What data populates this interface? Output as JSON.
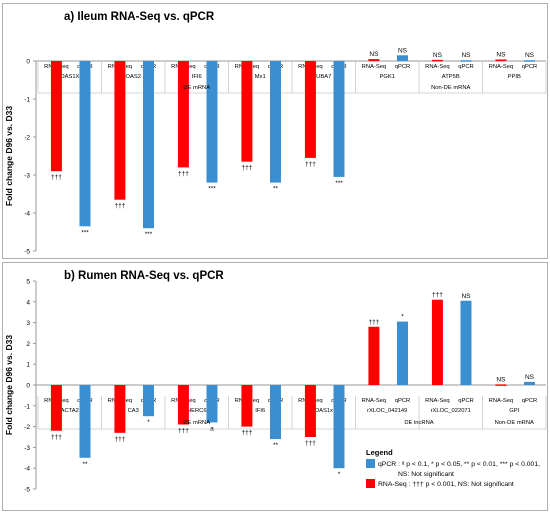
{
  "colors": {
    "rna_seq": "#ff0000",
    "qpcr": "#3b8fd0",
    "frame": "#b0b0b0",
    "axis": "#999999"
  },
  "y_axis_label": "Fold change D96 vs. D33",
  "legend": {
    "title": "Legend",
    "qpcr_text": "qPCR : ᵃ p < 0.1, * p < 0.05, ** p < 0.01, *** p < 0.001,",
    "qpcr_text_2": "NS: Not significant",
    "rnaseq_text": "RNA-Seq : ††† p < 0.001, NS: Not significant"
  },
  "chart_data": [
    {
      "type": "bar",
      "title": "a) Ileum RNA-Seq vs. qPCR",
      "ylabel": "Fold change D96 vs. D33",
      "ylim": [
        -5,
        0
      ],
      "yticks": [
        "0",
        "-1",
        "-2",
        "-3",
        "-4",
        "-5"
      ],
      "series_names": [
        "RNA-Seq",
        "qPCR"
      ],
      "genes": [
        "OAS1X",
        "OAS2",
        "IFI6",
        "Mx1",
        "UBA7",
        "PGK1",
        "ATP5B",
        "PPIB"
      ],
      "bars": [
        {
          "gene": "OAS1X",
          "method": "RNA-Seq",
          "value": -2.9,
          "sig": "†††"
        },
        {
          "gene": "OAS1X",
          "method": "qPCR",
          "value": -4.35,
          "sig": "***"
        },
        {
          "gene": "OAS2",
          "method": "RNA-Seq",
          "value": -3.65,
          "sig": "†††"
        },
        {
          "gene": "OAS2",
          "method": "qPCR",
          "value": -4.4,
          "sig": "***"
        },
        {
          "gene": "IFI6",
          "method": "RNA-Seq",
          "value": -2.8,
          "sig": "†††"
        },
        {
          "gene": "IFI6",
          "method": "qPCR",
          "value": -3.2,
          "sig": "***"
        },
        {
          "gene": "Mx1",
          "method": "RNA-Seq",
          "value": -2.65,
          "sig": "†††"
        },
        {
          "gene": "Mx1",
          "method": "qPCR",
          "value": -3.2,
          "sig": "**"
        },
        {
          "gene": "UBA7",
          "method": "RNA-Seq",
          "value": -2.55,
          "sig": "†††"
        },
        {
          "gene": "UBA7",
          "method": "qPCR",
          "value": -3.05,
          "sig": "***"
        },
        {
          "gene": "PGK1",
          "method": "RNA-Seq",
          "value": 0.05,
          "sig": "NS"
        },
        {
          "gene": "PGK1",
          "method": "qPCR",
          "value": 0.15,
          "sig": "NS"
        },
        {
          "gene": "ATP5B",
          "method": "RNA-Seq",
          "value": 0.03,
          "sig": "NS"
        },
        {
          "gene": "ATP5B",
          "method": "qPCR",
          "value": 0.02,
          "sig": "NS"
        },
        {
          "gene": "PPIB",
          "method": "RNA-Seq",
          "value": 0.04,
          "sig": "NS"
        },
        {
          "gene": "PPIB",
          "method": "qPCR",
          "value": 0.02,
          "sig": "NS"
        }
      ],
      "groups": [
        {
          "label": "DE mRNA",
          "genes": [
            "OAS1X",
            "OAS2",
            "IFI6",
            "Mx1",
            "UBA7"
          ]
        },
        {
          "label": "Non-DE mRNA",
          "genes": [
            "PGK1",
            "ATP5B",
            "PPIB"
          ]
        }
      ]
    },
    {
      "type": "bar",
      "title": "b) Rumen RNA-Seq vs. qPCR",
      "ylabel": "Fold change D96 vs. D33",
      "ylim": [
        -5,
        5
      ],
      "yticks": [
        "5",
        "4",
        "3",
        "2",
        "1",
        "0",
        "-1",
        "-2",
        "-3",
        "-4",
        "-5"
      ],
      "series_names": [
        "RNA-Seq",
        "qPCR"
      ],
      "genes": [
        "ACTA2",
        "CA3",
        "HERC6",
        "IFI6",
        "OAS1x",
        "rXLOC_042149",
        "rXLOC_022071",
        "GPI"
      ],
      "bars": [
        {
          "gene": "ACTA2",
          "method": "RNA-Seq",
          "value": -2.2,
          "sig": "†††"
        },
        {
          "gene": "ACTA2",
          "method": "qPCR",
          "value": -3.5,
          "sig": "**"
        },
        {
          "gene": "CA3",
          "method": "RNA-Seq",
          "value": -2.3,
          "sig": "†††"
        },
        {
          "gene": "CA3",
          "method": "qPCR",
          "value": -1.5,
          "sig": "*"
        },
        {
          "gene": "HERC6",
          "method": "RNA-Seq",
          "value": -1.9,
          "sig": "†††"
        },
        {
          "gene": "HERC6",
          "method": "qPCR",
          "value": -1.8,
          "sig": "a"
        },
        {
          "gene": "IFI6",
          "method": "RNA-Seq",
          "value": -2.0,
          "sig": "†††"
        },
        {
          "gene": "IFI6",
          "method": "qPCR",
          "value": -2.6,
          "sig": "**"
        },
        {
          "gene": "OAS1x",
          "method": "RNA-Seq",
          "value": -2.5,
          "sig": "†††"
        },
        {
          "gene": "OAS1x",
          "method": "qPCR",
          "value": -4.0,
          "sig": "*"
        },
        {
          "gene": "rXLOC_042149",
          "method": "RNA-Seq",
          "value": 2.8,
          "sig": "†††"
        },
        {
          "gene": "rXLOC_042149",
          "method": "qPCR",
          "value": 3.05,
          "sig": "*"
        },
        {
          "gene": "rXLOC_022071",
          "method": "RNA-Seq",
          "value": 4.1,
          "sig": "†††"
        },
        {
          "gene": "rXLOC_022071",
          "method": "qPCR",
          "value": 4.05,
          "sig": "NS"
        },
        {
          "gene": "GPI",
          "method": "RNA-Seq",
          "value": 0.03,
          "sig": "NS"
        },
        {
          "gene": "GPI",
          "method": "qPCR",
          "value": 0.15,
          "sig": "NS"
        }
      ],
      "groups": [
        {
          "label": "DE mRNA",
          "genes": [
            "ACTA2",
            "CA3",
            "HERC6",
            "IFI6",
            "OAS1x"
          ]
        },
        {
          "label": "DE lncRNA",
          "genes": [
            "rXLOC_042149",
            "rXLOC_022071"
          ]
        },
        {
          "label": "Non-DE mRNA",
          "genes": [
            "GPI"
          ]
        }
      ]
    }
  ]
}
